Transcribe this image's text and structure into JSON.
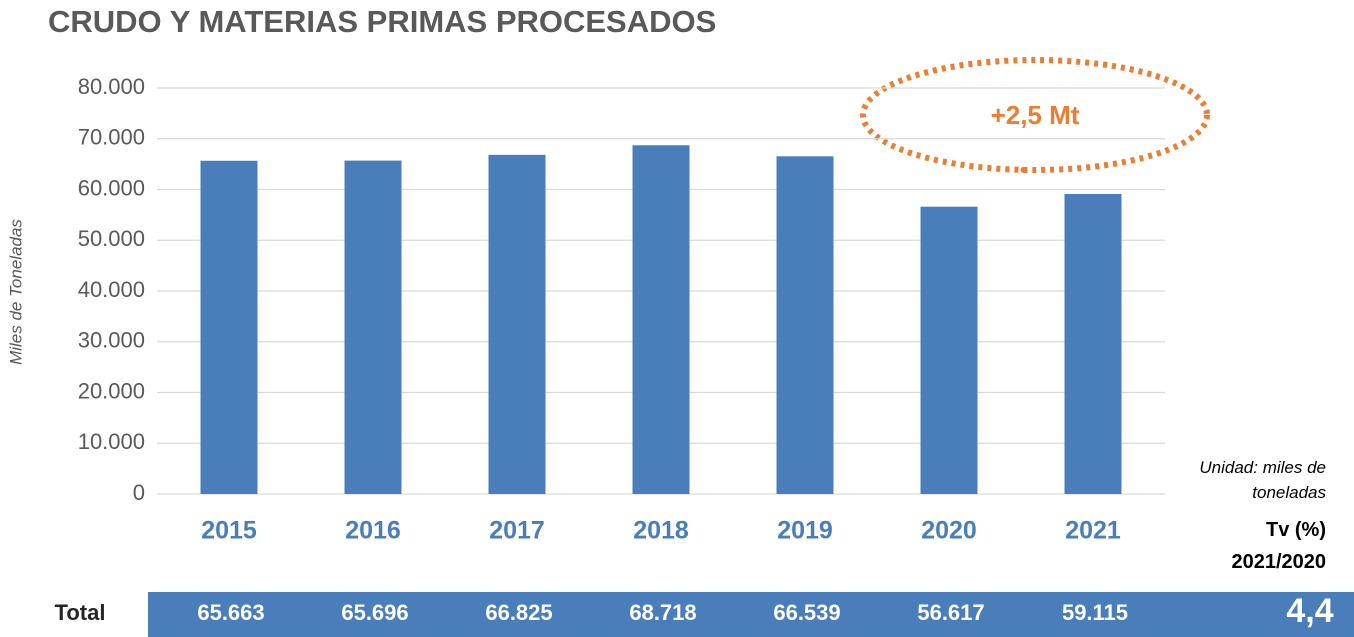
{
  "chart_data": {
    "type": "bar",
    "title": "CRUDO Y MATERIAS PRIMAS PROCESADOS",
    "y_label": "Miles de Toneladas",
    "categories": [
      "2015",
      "2016",
      "2017",
      "2018",
      "2019",
      "2020",
      "2021"
    ],
    "values": [
      65663,
      65696,
      66825,
      68718,
      66539,
      56617,
      59115
    ],
    "value_labels": [
      "65.663",
      "65.696",
      "66.825",
      "68.718",
      "66.539",
      "56.617",
      "59.115"
    ],
    "color": "#4a7ebb",
    "ylim": [
      0,
      80000
    ],
    "yticks": [
      0,
      {
        "value": 10000,
        "label": "10.000"
      },
      {
        "value": 20000,
        "label": "20.000"
      },
      {
        "value": 30000,
        "label": "30.000"
      },
      {
        "value": 40000,
        "label": "40.000"
      },
      {
        "value": 50000,
        "label": "50.000"
      },
      {
        "value": 60000,
        "label": "60.000"
      },
      {
        "value": 70000,
        "label": "70.000"
      },
      {
        "value": 80000,
        "label": "80.000"
      }
    ],
    "grid": true,
    "annotation": "+2,5 Mt",
    "unit_note": "Unidad: miles de toneladas",
    "row_label": "Total",
    "rate_label": "Tv (%) 2021/2020",
    "rate_value": "4,4"
  }
}
